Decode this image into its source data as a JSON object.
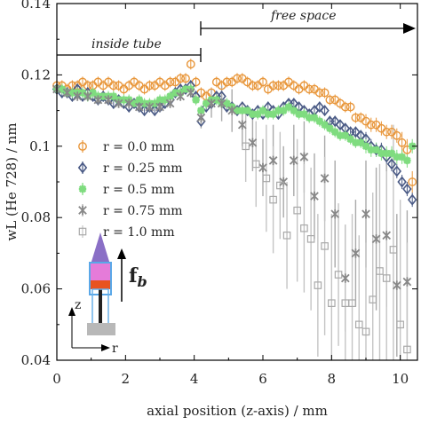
{
  "chart_data": {
    "type": "scatter",
    "xlabel": "axial position (z-axis) / mm",
    "ylabel": "wL (He 728) / nm",
    "xlim": [
      0,
      10.5
    ],
    "ylim": [
      0.04,
      0.14
    ],
    "x_ticks": [
      0,
      2,
      4,
      6,
      8,
      10
    ],
    "y_ticks": [
      0.04,
      0.06,
      0.08,
      0.1,
      0.12,
      0.14
    ],
    "x_tick_labels": [
      "0",
      "2",
      "4",
      "6",
      "8",
      "10"
    ],
    "y_tick_labels": [
      "0.04",
      "0.06",
      "0.08",
      "0.1",
      "0.12",
      "0.14"
    ],
    "legend_position": "center-left",
    "annotations": {
      "inside_tube": "inside tube",
      "free_space": "free space",
      "force_label": "f",
      "force_sub": "b",
      "inset_axis_z": "z",
      "inset_axis_r": "r"
    },
    "series": [
      {
        "name": "r = 0.0 mm",
        "marker": "circle",
        "color": "#e8963a",
        "x": [
          0.0,
          0.15,
          0.3,
          0.45,
          0.6,
          0.75,
          0.9,
          1.05,
          1.2,
          1.35,
          1.5,
          1.65,
          1.8,
          1.95,
          2.1,
          2.25,
          2.4,
          2.55,
          2.7,
          2.85,
          3.0,
          3.15,
          3.3,
          3.45,
          3.6,
          3.75,
          3.9,
          4.05,
          4.2,
          4.35,
          4.5,
          4.65,
          4.8,
          4.95,
          5.1,
          5.25,
          5.4,
          5.55,
          5.7,
          5.85,
          6.0,
          6.15,
          6.3,
          6.45,
          6.6,
          6.75,
          6.9,
          7.05,
          7.2,
          7.35,
          7.5,
          7.65,
          7.8,
          7.95,
          8.1,
          8.25,
          8.4,
          8.55,
          8.7,
          8.85,
          9.0,
          9.15,
          9.3,
          9.45,
          9.6,
          9.75,
          9.9,
          10.05,
          10.2,
          10.35
        ],
        "y": [
          0.117,
          0.117,
          0.116,
          0.117,
          0.117,
          0.118,
          0.117,
          0.117,
          0.118,
          0.117,
          0.118,
          0.117,
          0.117,
          0.116,
          0.117,
          0.118,
          0.117,
          0.116,
          0.117,
          0.117,
          0.118,
          0.117,
          0.118,
          0.118,
          0.119,
          0.119,
          0.123,
          0.118,
          0.115,
          0.114,
          0.115,
          0.118,
          0.117,
          0.118,
          0.118,
          0.119,
          0.119,
          0.118,
          0.117,
          0.117,
          0.118,
          0.116,
          0.117,
          0.117,
          0.117,
          0.118,
          0.117,
          0.116,
          0.117,
          0.116,
          0.116,
          0.115,
          0.115,
          0.113,
          0.113,
          0.112,
          0.111,
          0.111,
          0.108,
          0.108,
          0.107,
          0.106,
          0.106,
          0.105,
          0.104,
          0.104,
          0.103,
          0.101,
          0.099,
          0.09
        ],
        "err": [
          0.0015,
          0.0015,
          0.0015,
          0.0015,
          0.0015,
          0.0015,
          0.0015,
          0.0015,
          0.0015,
          0.0015,
          0.0015,
          0.0015,
          0.0015,
          0.0015,
          0.0015,
          0.0015,
          0.0015,
          0.0015,
          0.0015,
          0.0015,
          0.0015,
          0.0015,
          0.0015,
          0.0015,
          0.0015,
          0.0015,
          0.0015,
          0.0015,
          0.0015,
          0.0015,
          0.0015,
          0.0015,
          0.0015,
          0.0015,
          0.0015,
          0.0015,
          0.0015,
          0.0015,
          0.0015,
          0.0015,
          0.0015,
          0.0015,
          0.0015,
          0.0015,
          0.0015,
          0.0015,
          0.0015,
          0.0015,
          0.0015,
          0.0015,
          0.0015,
          0.0015,
          0.0015,
          0.0015,
          0.0015,
          0.0015,
          0.0015,
          0.0015,
          0.0015,
          0.0015,
          0.002,
          0.002,
          0.002,
          0.002,
          0.002,
          0.002,
          0.002,
          0.003,
          0.003,
          0.003
        ]
      },
      {
        "name": "r = 0.25 mm",
        "marker": "diamond",
        "color": "#4a5a85",
        "x": [
          0.0,
          0.15,
          0.3,
          0.45,
          0.6,
          0.75,
          0.9,
          1.05,
          1.2,
          1.35,
          1.5,
          1.65,
          1.8,
          1.95,
          2.1,
          2.25,
          2.4,
          2.55,
          2.7,
          2.85,
          3.0,
          3.15,
          3.3,
          3.45,
          3.6,
          3.75,
          3.9,
          4.05,
          4.2,
          4.35,
          4.5,
          4.65,
          4.8,
          4.95,
          5.1,
          5.25,
          5.4,
          5.55,
          5.7,
          5.85,
          6.0,
          6.15,
          6.3,
          6.45,
          6.6,
          6.75,
          6.9,
          7.05,
          7.2,
          7.35,
          7.5,
          7.65,
          7.8,
          7.95,
          8.1,
          8.25,
          8.4,
          8.55,
          8.7,
          8.85,
          9.0,
          9.15,
          9.3,
          9.45,
          9.6,
          9.75,
          9.9,
          10.05,
          10.2,
          10.35
        ],
        "y": [
          0.116,
          0.115,
          0.115,
          0.114,
          0.116,
          0.114,
          0.115,
          0.114,
          0.113,
          0.114,
          0.113,
          0.112,
          0.113,
          0.112,
          0.111,
          0.112,
          0.111,
          0.11,
          0.111,
          0.11,
          0.111,
          0.112,
          0.113,
          0.115,
          0.116,
          0.116,
          0.117,
          0.114,
          0.107,
          0.111,
          0.112,
          0.114,
          0.114,
          0.111,
          0.111,
          0.11,
          0.111,
          0.11,
          0.109,
          0.11,
          0.109,
          0.111,
          0.11,
          0.109,
          0.111,
          0.112,
          0.112,
          0.111,
          0.11,
          0.109,
          0.11,
          0.111,
          0.11,
          0.107,
          0.107,
          0.106,
          0.105,
          0.104,
          0.104,
          0.103,
          0.102,
          0.1,
          0.099,
          0.099,
          0.097,
          0.095,
          0.093,
          0.09,
          0.088,
          0.085
        ],
        "err": [
          0.0015,
          0.0015,
          0.0015,
          0.0015,
          0.0015,
          0.0015,
          0.0015,
          0.0015,
          0.0015,
          0.0015,
          0.0015,
          0.0015,
          0.0015,
          0.0015,
          0.0015,
          0.0015,
          0.0015,
          0.0015,
          0.0015,
          0.0015,
          0.0015,
          0.0015,
          0.0015,
          0.0015,
          0.0015,
          0.0015,
          0.0015,
          0.0015,
          0.0015,
          0.0015,
          0.0015,
          0.0015,
          0.0015,
          0.0015,
          0.0015,
          0.0015,
          0.0015,
          0.0015,
          0.0015,
          0.0015,
          0.0015,
          0.0015,
          0.0015,
          0.0015,
          0.0015,
          0.0015,
          0.0015,
          0.0015,
          0.0015,
          0.0015,
          0.0015,
          0.0015,
          0.0015,
          0.0015,
          0.0015,
          0.0015,
          0.0015,
          0.0015,
          0.0015,
          0.0015,
          0.002,
          0.002,
          0.002,
          0.002,
          0.002,
          0.002,
          0.002,
          0.002,
          0.002,
          0.002
        ]
      },
      {
        "name": "r = 0.5 mm",
        "marker": "cross",
        "color": "#7fdc7f",
        "x": [
          0.0,
          0.15,
          0.3,
          0.45,
          0.6,
          0.75,
          0.9,
          1.05,
          1.2,
          1.35,
          1.5,
          1.65,
          1.8,
          1.95,
          2.1,
          2.25,
          2.4,
          2.55,
          2.7,
          2.85,
          3.0,
          3.15,
          3.3,
          3.45,
          3.6,
          3.75,
          3.9,
          4.05,
          4.2,
          4.35,
          4.5,
          4.65,
          4.8,
          4.95,
          5.1,
          5.25,
          5.4,
          5.55,
          5.7,
          5.85,
          6.0,
          6.15,
          6.3,
          6.45,
          6.6,
          6.75,
          6.9,
          7.05,
          7.2,
          7.35,
          7.5,
          7.65,
          7.8,
          7.95,
          8.1,
          8.25,
          8.4,
          8.55,
          8.7,
          8.85,
          9.0,
          9.15,
          9.3,
          9.45,
          9.6,
          9.75,
          9.9,
          10.05,
          10.2,
          10.35
        ],
        "y": [
          0.116,
          0.116,
          0.115,
          0.115,
          0.115,
          0.115,
          0.114,
          0.115,
          0.114,
          0.114,
          0.114,
          0.114,
          0.113,
          0.113,
          0.113,
          0.112,
          0.113,
          0.112,
          0.112,
          0.112,
          0.113,
          0.113,
          0.114,
          0.115,
          0.115,
          0.116,
          0.116,
          0.113,
          0.11,
          0.112,
          0.113,
          0.113,
          0.112,
          0.112,
          0.111,
          0.11,
          0.11,
          0.11,
          0.109,
          0.109,
          0.11,
          0.109,
          0.109,
          0.11,
          0.11,
          0.111,
          0.11,
          0.109,
          0.109,
          0.108,
          0.108,
          0.107,
          0.106,
          0.105,
          0.104,
          0.103,
          0.103,
          0.102,
          0.101,
          0.101,
          0.1,
          0.099,
          0.099,
          0.098,
          0.098,
          0.098,
          0.097,
          0.097,
          0.096,
          0.1
        ],
        "err": [
          0.0015,
          0.0015,
          0.0015,
          0.0015,
          0.0015,
          0.0015,
          0.0015,
          0.0015,
          0.0015,
          0.0015,
          0.0015,
          0.0015,
          0.0015,
          0.0015,
          0.0015,
          0.0015,
          0.0015,
          0.0015,
          0.0015,
          0.0015,
          0.0015,
          0.0015,
          0.0015,
          0.0015,
          0.0015,
          0.0015,
          0.0015,
          0.0015,
          0.0015,
          0.0015,
          0.0015,
          0.0015,
          0.0015,
          0.0015,
          0.0015,
          0.0015,
          0.0015,
          0.0015,
          0.0015,
          0.0015,
          0.0015,
          0.0015,
          0.0015,
          0.0015,
          0.0015,
          0.0015,
          0.0015,
          0.0015,
          0.0015,
          0.0015,
          0.0015,
          0.0015,
          0.0015,
          0.0015,
          0.0015,
          0.0015,
          0.0015,
          0.0015,
          0.0015,
          0.0015,
          0.002,
          0.002,
          0.002,
          0.002,
          0.002,
          0.002,
          0.002,
          0.002,
          0.002,
          0.002
        ]
      },
      {
        "name": "r = 0.75 mm",
        "marker": "star",
        "color": "#888888",
        "x": [
          0.0,
          0.3,
          0.6,
          0.9,
          1.2,
          1.5,
          1.8,
          2.1,
          2.4,
          2.7,
          3.0,
          3.3,
          3.6,
          3.9,
          4.2,
          4.5,
          4.8,
          5.1,
          5.4,
          5.7,
          6.0,
          6.3,
          6.6,
          6.9,
          7.2,
          7.5,
          7.8,
          8.1,
          8.4,
          8.7,
          9.0,
          9.3,
          9.6,
          9.9,
          10.2
        ],
        "y": [
          0.116,
          0.115,
          0.114,
          0.114,
          0.113,
          0.113,
          0.112,
          0.112,
          0.111,
          0.111,
          0.111,
          0.112,
          0.114,
          0.115,
          0.108,
          0.112,
          0.112,
          0.11,
          0.106,
          0.101,
          0.094,
          0.096,
          0.09,
          0.096,
          0.097,
          0.086,
          0.091,
          0.081,
          0.063,
          0.07,
          0.081,
          0.074,
          0.075,
          0.061,
          0.062
        ],
        "err": [
          0.001,
          0.001,
          0.001,
          0.001,
          0.001,
          0.001,
          0.001,
          0.001,
          0.001,
          0.001,
          0.001,
          0.001,
          0.001,
          0.001,
          0.003,
          0.004,
          0.005,
          0.006,
          0.006,
          0.008,
          0.008,
          0.01,
          0.01,
          0.01,
          0.01,
          0.012,
          0.012,
          0.015,
          0.015,
          0.015,
          0.015,
          0.02,
          0.02,
          0.02,
          0.02
        ]
      },
      {
        "name": "r = 1.0 mm",
        "marker": "square",
        "color": "#a9a9a9",
        "x": [
          5.5,
          5.8,
          6.1,
          6.3,
          6.5,
          6.7,
          7.0,
          7.2,
          7.4,
          7.6,
          7.8,
          8.0,
          8.2,
          8.4,
          8.6,
          8.8,
          9.0,
          9.2,
          9.4,
          9.6,
          9.8,
          10.0,
          10.2
        ],
        "y": [
          0.1,
          0.095,
          0.091,
          0.085,
          0.089,
          0.075,
          0.082,
          0.077,
          0.074,
          0.061,
          0.072,
          0.056,
          0.064,
          0.056,
          0.056,
          0.05,
          0.048,
          0.057,
          0.065,
          0.063,
          0.071,
          0.05,
          0.043
        ],
        "err": [
          0.01,
          0.012,
          0.015,
          0.015,
          0.015,
          0.015,
          0.02,
          0.018,
          0.02,
          0.02,
          0.025,
          0.025,
          0.02,
          0.022,
          0.025,
          0.025,
          0.025,
          0.03,
          0.03,
          0.03,
          0.035,
          0.035,
          0.03
        ]
      }
    ]
  }
}
